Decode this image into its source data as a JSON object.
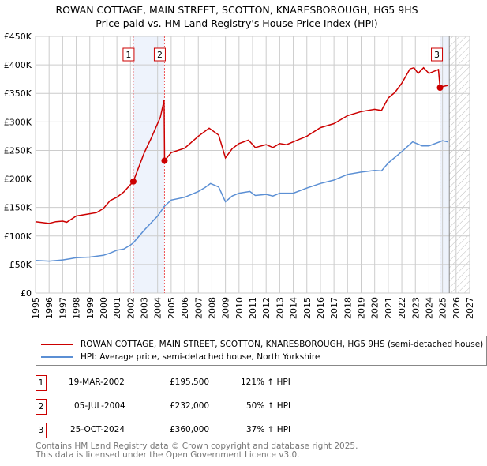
{
  "title": "ROWAN COTTAGE, MAIN STREET, SCOTTON, KNARESBOROUGH, HG5 9HS",
  "subtitle": "Price paid vs. HM Land Registry's House Price Index (HPI)",
  "chart_data": {
    "type": "line",
    "xlim": [
      1995,
      2027
    ],
    "ylim": [
      0,
      450000
    ],
    "x_ticks": [
      "1995",
      "1996",
      "1997",
      "1998",
      "1999",
      "2000",
      "2001",
      "2002",
      "2003",
      "2004",
      "2005",
      "2006",
      "2007",
      "2008",
      "2009",
      "2010",
      "2011",
      "2012",
      "2013",
      "2014",
      "2015",
      "2016",
      "2017",
      "2018",
      "2019",
      "2020",
      "2021",
      "2022",
      "2023",
      "2024",
      "2025",
      "2026",
      "2027"
    ],
    "y_ticks": [
      {
        "v": 0,
        "l": "£0"
      },
      {
        "v": 50000,
        "l": "£50K"
      },
      {
        "v": 100000,
        "l": "£100K"
      },
      {
        "v": 150000,
        "l": "£150K"
      },
      {
        "v": 200000,
        "l": "£200K"
      },
      {
        "v": 250000,
        "l": "£250K"
      },
      {
        "v": 300000,
        "l": "£300K"
      },
      {
        "v": 350000,
        "l": "£350K"
      },
      {
        "v": 400000,
        "l": "£400K"
      },
      {
        "v": 450000,
        "l": "£450K"
      }
    ],
    "grid": true,
    "shaded_ranges": [
      [
        2002.21,
        2004.51
      ],
      [
        2024.82,
        2025.5
      ]
    ],
    "forecast_hatch_from": 2025.5,
    "series": [
      {
        "name": "ROWAN COTTAGE, MAIN STREET, SCOTTON, KNARESBOROUGH, HG5 9HS (semi-detached house)",
        "color": "#cc0000",
        "x": [
          1995,
          1996,
          1996.5,
          1997,
          1997.3,
          1998,
          1999,
          1999.5,
          2000,
          2000.5,
          2001,
          2001.5,
          2002.21,
          2003,
          2003.5,
          2004.2,
          2004.48,
          2004.51,
          2005,
          2006,
          2007,
          2007.8,
          2008.5,
          2009,
          2009.5,
          2010,
          2010.7,
          2011.2,
          2012,
          2012.5,
          2013,
          2013.5,
          2014,
          2015,
          2016,
          2017,
          2018,
          2019,
          2020,
          2020.5,
          2021,
          2021.5,
          2022,
          2022.6,
          2022.9,
          2023.2,
          2023.6,
          2024,
          2024.7,
          2024.82,
          2025,
          2025.4
        ],
        "values": [
          125000,
          122000,
          125000,
          126000,
          124000,
          135000,
          139000,
          141000,
          148000,
          162000,
          168000,
          177000,
          195500,
          245000,
          270000,
          308000,
          338000,
          232000,
          246000,
          254000,
          275000,
          289000,
          277000,
          237000,
          253000,
          262000,
          268000,
          255000,
          260000,
          255000,
          262000,
          260000,
          265000,
          275000,
          290000,
          297000,
          311000,
          318000,
          322000,
          320000,
          342000,
          352000,
          368000,
          393000,
          395000,
          385000,
          395000,
          385000,
          392000,
          360000,
          362000,
          364000
        ]
      },
      {
        "name": "HPI: Average price, semi-detached house, North Yorkshire",
        "color": "#5b8fd4",
        "x": [
          1995,
          1996,
          1997,
          1997.5,
          1998,
          1999,
          2000,
          2000.5,
          2001,
          2001.5,
          2002,
          2002.21,
          2003,
          2004,
          2004.5,
          2005,
          2006,
          2007,
          2007.5,
          2007.9,
          2008.5,
          2009,
          2009.5,
          2010,
          2010.8,
          2011.2,
          2012,
          2012.5,
          2013,
          2014,
          2015,
          2016,
          2017,
          2018,
          2019,
          2020,
          2020.5,
          2021,
          2022,
          2022.8,
          2023.5,
          2024,
          2024.8,
          2025,
          2025.4
        ],
        "values": [
          57000,
          56000,
          58000,
          60000,
          62000,
          63000,
          66000,
          70000,
          75000,
          77000,
          84000,
          88000,
          110000,
          135000,
          152000,
          163000,
          168000,
          178000,
          185000,
          192000,
          186000,
          160000,
          170000,
          175000,
          178000,
          171000,
          173000,
          170000,
          175000,
          175000,
          184000,
          192000,
          198000,
          208000,
          212000,
          215000,
          214000,
          228000,
          248000,
          265000,
          258000,
          258000,
          265000,
          267000,
          265000
        ]
      }
    ],
    "annotations": [
      {
        "label": "1",
        "x": 2002.21,
        "y": 195500
      },
      {
        "label": "2",
        "x": 2004.51,
        "y": 232000
      },
      {
        "label": "3",
        "x": 2024.82,
        "y": 360000
      }
    ]
  },
  "legend": {
    "red": "ROWAN COTTAGE, MAIN STREET, SCOTTON, KNARESBOROUGH, HG5 9HS (semi-detached house)",
    "blue": "HPI: Average price, semi-detached house, North Yorkshire"
  },
  "sales": [
    {
      "num": "1",
      "date": "19-MAR-2002",
      "price": "£195,500",
      "hpi": "121% ↑ HPI"
    },
    {
      "num": "2",
      "date": "05-JUL-2004",
      "price": "£232,000",
      "hpi": "50% ↑ HPI"
    },
    {
      "num": "3",
      "date": "25-OCT-2024",
      "price": "£360,000",
      "hpi": "37% ↑ HPI"
    }
  ],
  "footer": [
    "Contains HM Land Registry data © Crown copyright and database right 2025.",
    "This data is licensed under the Open Government Licence v3.0."
  ]
}
